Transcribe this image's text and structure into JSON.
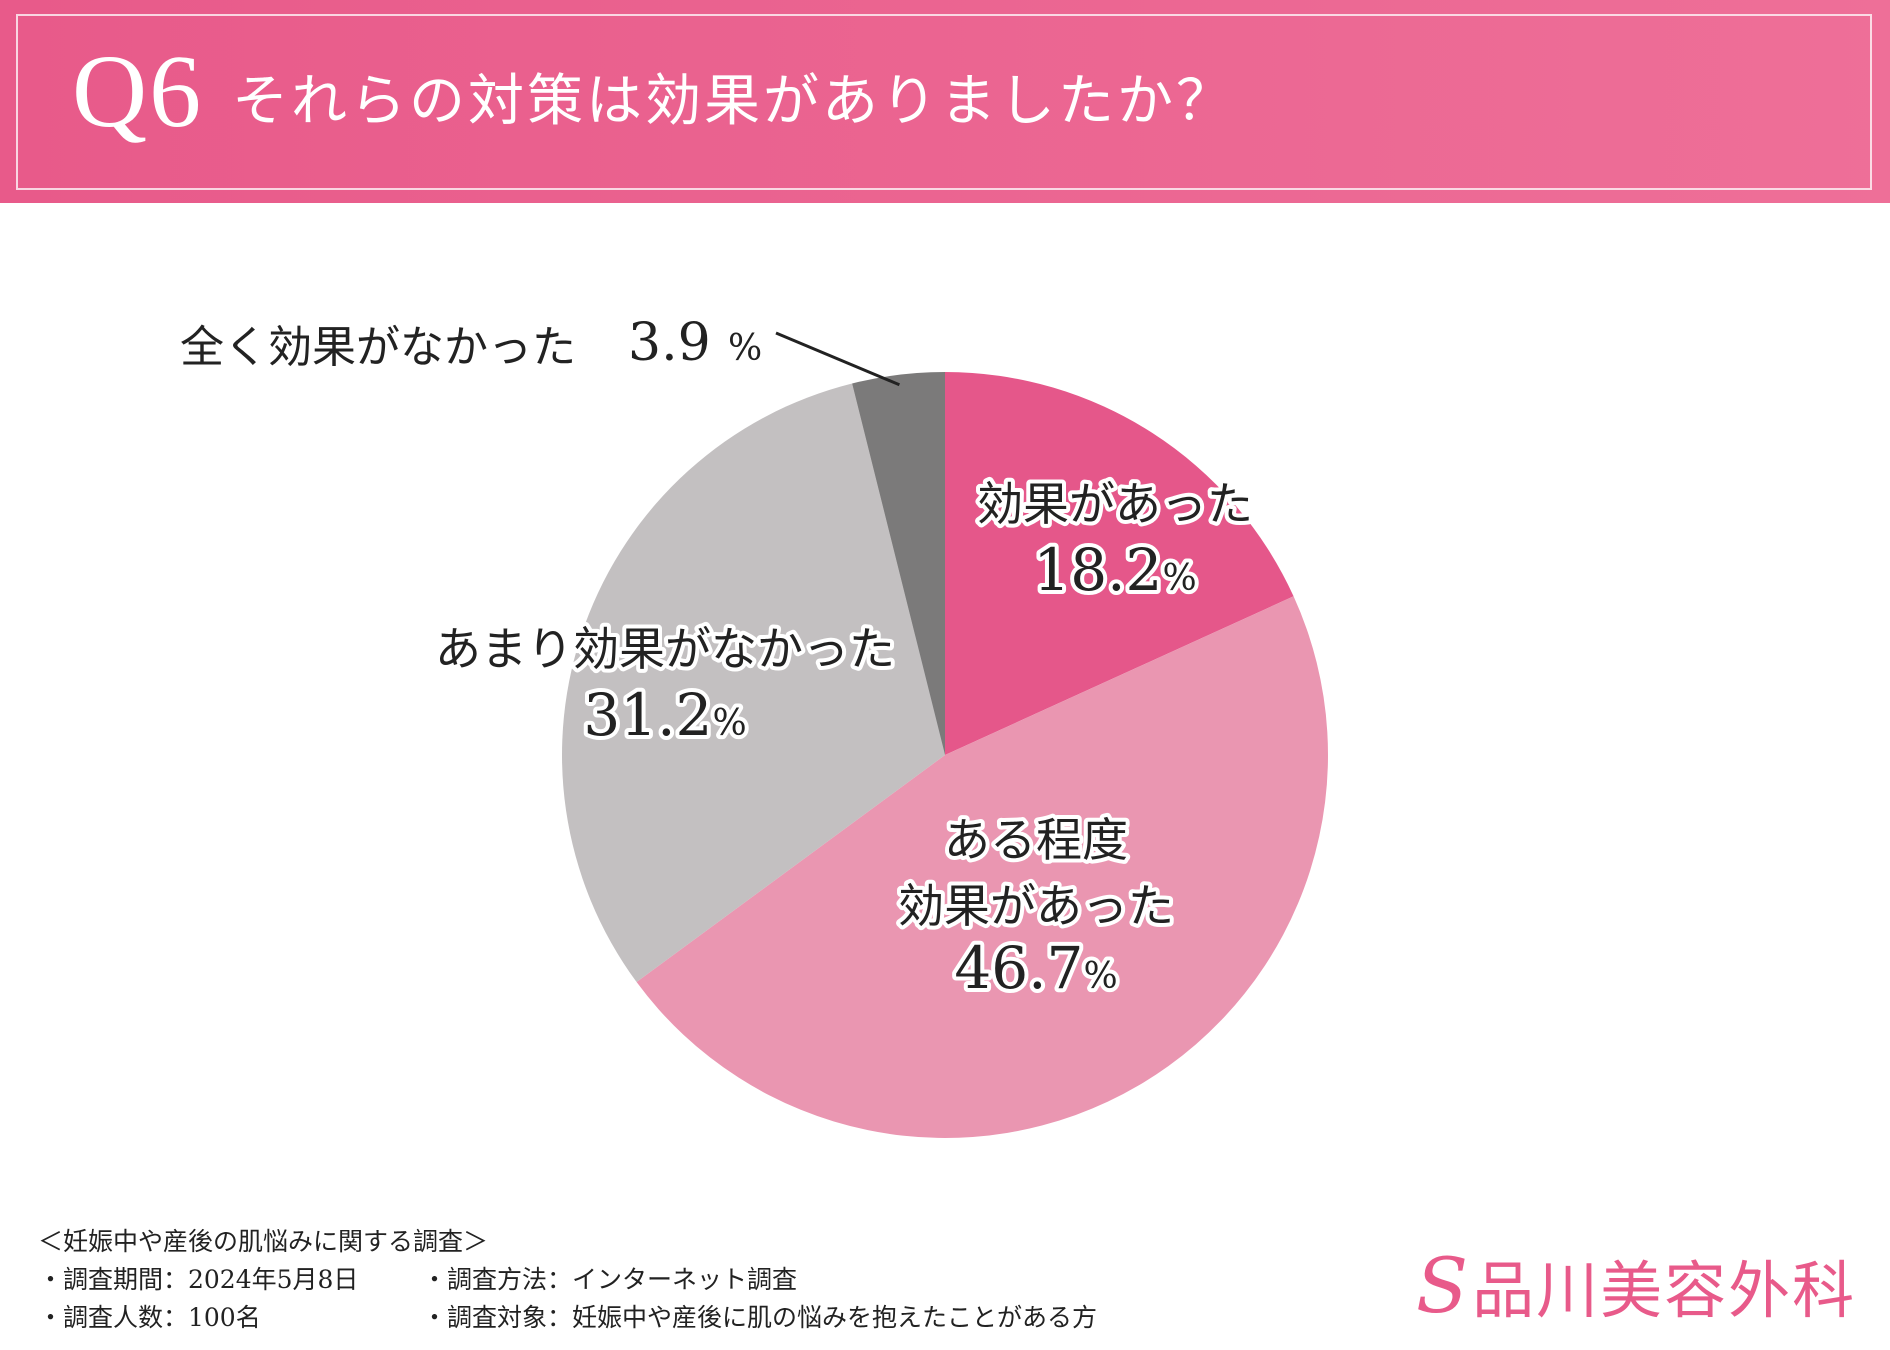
{
  "header": {
    "q_number": "Q6",
    "question": "それらの対策は効果がありましたか？"
  },
  "chart_data": {
    "type": "pie",
    "title": "それらの対策は効果がありましたか？",
    "start_angle": "12 o'clock",
    "direction": "clockwise",
    "slices": [
      {
        "label": "効果があった",
        "label_lines": [
          "効果があった"
        ],
        "value": 18.2,
        "value_text": "18.2",
        "color": "#e5578a"
      },
      {
        "label": "ある程度効果があった",
        "label_lines": [
          "ある程度",
          "効果があった"
        ],
        "value": 46.7,
        "value_text": "46.7",
        "color": "#ea96b1"
      },
      {
        "label": "あまり効果がなかった",
        "label_lines": [
          "あまり効果がなかった"
        ],
        "value": 31.2,
        "value_text": "31.2",
        "color": "#c3c0c1"
      },
      {
        "label": "全く効果がなかった",
        "label_lines": [
          "全く効果がなかった"
        ],
        "value": 3.9,
        "value_text": "3.9",
        "color": "#7b7a7a"
      }
    ],
    "percent_sign": "%"
  },
  "footer": {
    "survey_title": "＜妊娠中や産後の肌悩みに関する調査＞",
    "period": "・調査期間：2024年5月8日",
    "method": "・調査方法：インターネット調査",
    "sample_size": "・調査人数：100名",
    "target": "・調査対象：妊娠中や産後に肌の悩みを抱えたことがある方"
  },
  "brand": {
    "mark": "S",
    "name": "品川美容外科",
    "color": "#e85a8a"
  }
}
